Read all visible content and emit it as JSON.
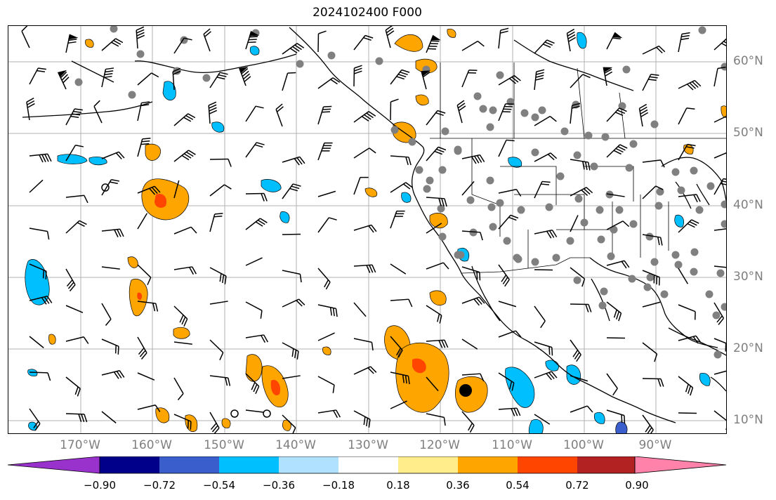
{
  "title": "2024102400 F000",
  "map": {
    "lon_ticks": [
      "170°W",
      "160°W",
      "150°W",
      "140°W",
      "130°W",
      "120°W",
      "110°W",
      "100°W",
      "90°W"
    ],
    "lat_ticks": [
      "60°N",
      "50°N",
      "40°N",
      "30°N",
      "20°N",
      "10°N"
    ],
    "extent": {
      "lon": [
        -180,
        -80
      ],
      "lat": [
        8,
        65
      ]
    },
    "grid": true
  },
  "colorbar": {
    "colors": [
      "#9932cc",
      "#00008b",
      "#3a5fcd",
      "#00bfff",
      "#b0e2ff",
      "#ffffff",
      "#ffec8b",
      "#ffa500",
      "#ff4500",
      "#b22222",
      "#ff82ab"
    ],
    "tick_labels": [
      "−0.90",
      "−0.72",
      "−0.54",
      "−0.36",
      "−0.18",
      "0.18",
      "0.36",
      "0.54",
      "0.72",
      "0.90"
    ],
    "extend": "both"
  },
  "colors": {
    "land_station": "#808080",
    "barb": "#000000",
    "grid": "#b0b0b0"
  }
}
